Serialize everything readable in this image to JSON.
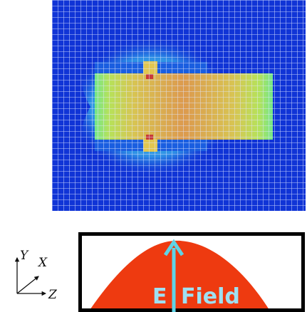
{
  "field_map": {
    "background_color": "#1034d6",
    "grid_line_color": "#dfe8ff",
    "gradient_colors": [
      "#1034d6",
      "#2e8fe6",
      "#4fe3e3",
      "#86ea78",
      "#d9d94e",
      "#e4a64a",
      "#d98a4a"
    ],
    "hotspot_color": "#c83a3a"
  },
  "axes": {
    "y_label": "Y",
    "x_label": "X",
    "z_label": "Z"
  },
  "profile": {
    "label_e": "E",
    "label_field": "Field",
    "shape_color": "#ee3a10",
    "arrow_color": "#5fd3e6",
    "frame_color": "#000000"
  }
}
